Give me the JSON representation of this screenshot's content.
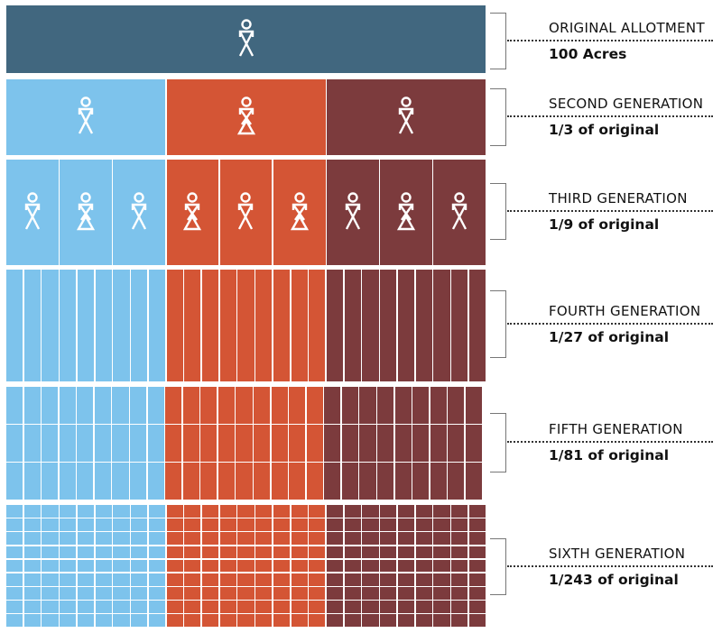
{
  "colors": {
    "original": "#41677F",
    "branch_a": "#7DC3EC",
    "branch_b": "#D45535",
    "branch_c": "#7C3B3D"
  },
  "generations": [
    {
      "title": "ORIGINAL ALLOTMENT",
      "share": "100 Acres",
      "cols": 1,
      "rows": 1,
      "figures": [
        "male"
      ]
    },
    {
      "title": "SECOND GENERATION",
      "share": "1/3 of original",
      "cols": 1,
      "rows": 1,
      "figures": [
        "male",
        "female",
        "male"
      ]
    },
    {
      "title": "THIRD GENERATION",
      "share": "1/9 of original",
      "cols": 3,
      "rows": 1,
      "figures": [
        "male",
        "female",
        "male",
        "female",
        "male",
        "female",
        "male",
        "female",
        "male"
      ]
    },
    {
      "title": "FOURTH GENERATION",
      "share": "1/27 of original",
      "cols": 9,
      "rows": 1,
      "figures": []
    },
    {
      "title": "FIFTH GENERATION",
      "share": "1/81 of original",
      "cols": 9,
      "rows": 3,
      "figures": []
    },
    {
      "title": "SIXTH GENERATION",
      "share": "1/243 of original",
      "cols": 9,
      "rows": 9,
      "figures": []
    }
  ]
}
